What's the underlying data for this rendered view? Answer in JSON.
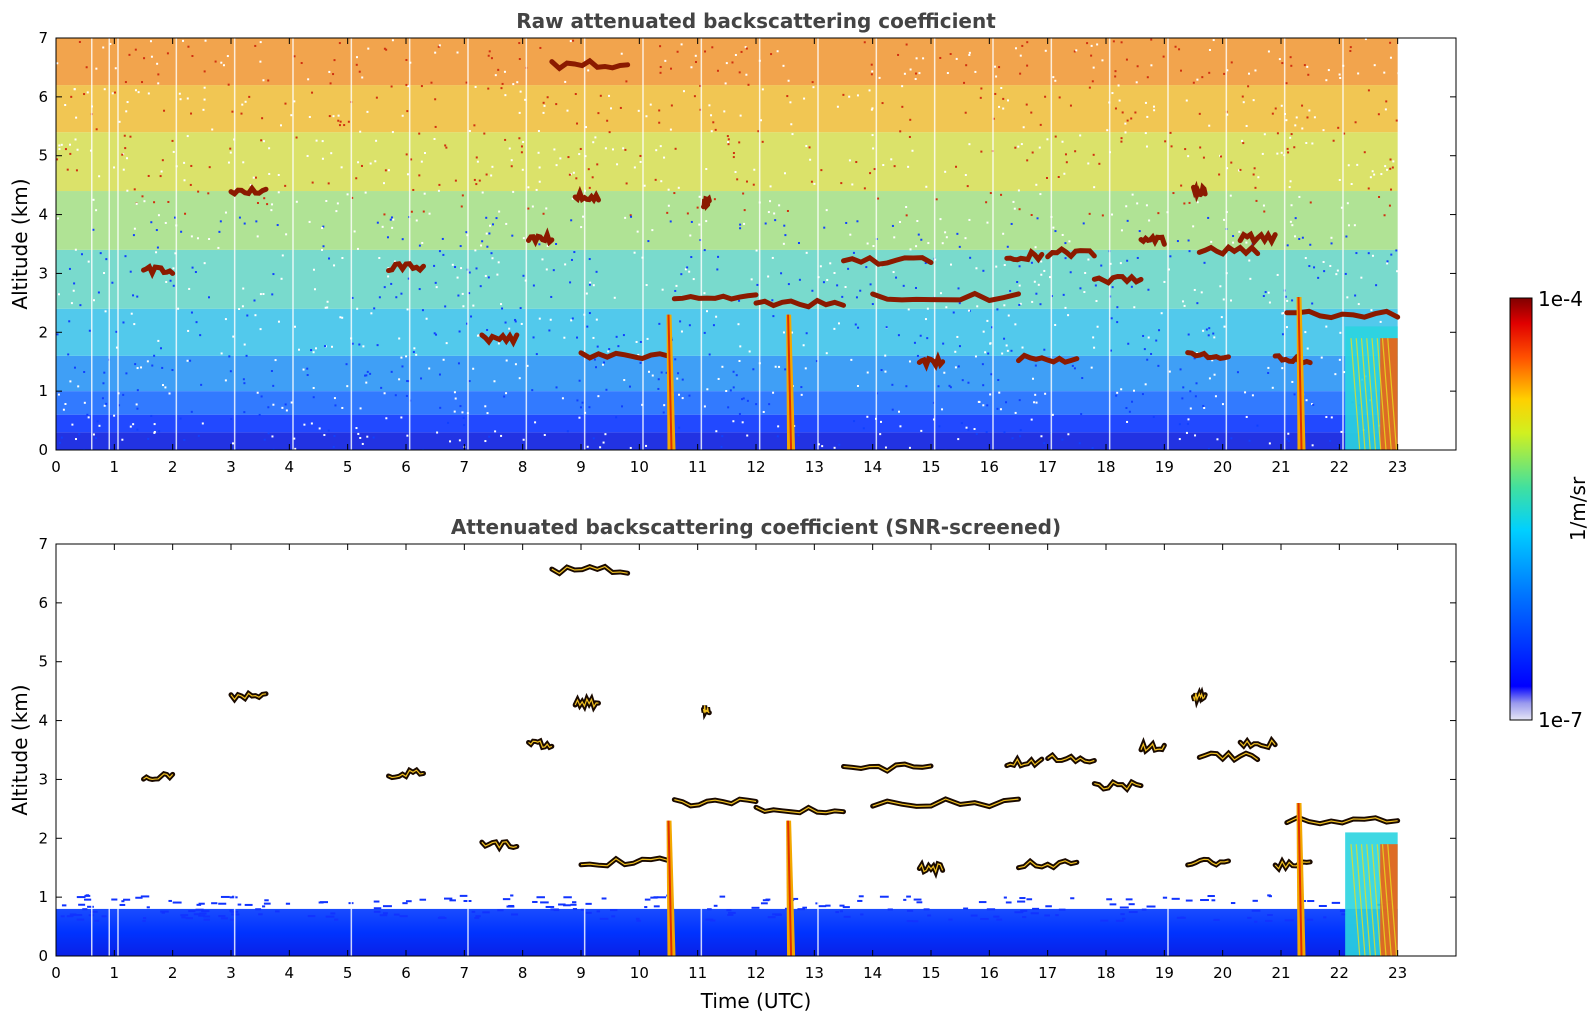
{
  "chart_data": [
    {
      "type": "heatmap",
      "title": "Raw attenuated backscattering coefficient",
      "xlabel": "",
      "ylabel": "Altitude (km)",
      "xlim": [
        0,
        24
      ],
      "ylim": [
        0,
        7
      ],
      "x_ticks": [
        "0",
        "1",
        "2",
        "3",
        "4",
        "5",
        "6",
        "7",
        "8",
        "9",
        "10",
        "11",
        "12",
        "13",
        "14",
        "15",
        "16",
        "17",
        "18",
        "19",
        "20",
        "21",
        "22",
        "23"
      ],
      "y_ticks": [
        "0",
        "1",
        "2",
        "3",
        "4",
        "5",
        "6",
        "7"
      ],
      "data_end_hour": 23,
      "boundary_layer_top_km": 0.6,
      "noise": "high",
      "features": [
        {
          "kind": "cloud",
          "t": [
            1.5,
            2.0
          ],
          "alt": 3.05
        },
        {
          "kind": "cloud",
          "t": [
            3.0,
            3.6
          ],
          "alt": 4.4
        },
        {
          "kind": "cloud",
          "t": [
            5.7,
            6.3
          ],
          "alt": 3.1
        },
        {
          "kind": "cloud",
          "t": [
            7.3,
            7.9
          ],
          "alt": 1.9
        },
        {
          "kind": "cloud",
          "t": [
            8.1,
            8.5
          ],
          "alt": 3.6
        },
        {
          "kind": "cloud",
          "t": [
            8.5,
            9.8
          ],
          "alt": 6.55
        },
        {
          "kind": "cloud",
          "t": [
            8.9,
            9.3
          ],
          "alt": 4.3
        },
        {
          "kind": "cloud",
          "t": [
            9.0,
            10.5
          ],
          "alt": 1.6
        },
        {
          "kind": "cloud",
          "t": [
            10.6,
            12.0
          ],
          "alt": 2.6
        },
        {
          "kind": "cloud",
          "t": [
            11.1,
            11.2
          ],
          "alt": 4.2
        },
        {
          "kind": "cloud",
          "t": [
            12.0,
            13.5
          ],
          "alt": 2.5
        },
        {
          "kind": "cloud",
          "t": [
            13.5,
            15.0
          ],
          "alt": 3.2
        },
        {
          "kind": "cloud",
          "t": [
            14.0,
            16.5
          ],
          "alt": 2.6
        },
        {
          "kind": "cloud",
          "t": [
            14.8,
            15.2
          ],
          "alt": 1.5
        },
        {
          "kind": "cloud",
          "t": [
            16.3,
            16.9
          ],
          "alt": 3.3
        },
        {
          "kind": "cloud",
          "t": [
            16.5,
            17.5
          ],
          "alt": 1.55
        },
        {
          "kind": "cloud",
          "t": [
            17.0,
            17.8
          ],
          "alt": 3.35
        },
        {
          "kind": "cloud",
          "t": [
            17.8,
            18.6
          ],
          "alt": 2.9
        },
        {
          "kind": "cloud",
          "t": [
            18.6,
            19.0
          ],
          "alt": 3.55
        },
        {
          "kind": "cloud",
          "t": [
            19.5,
            19.7
          ],
          "alt": 4.4
        },
        {
          "kind": "cloud",
          "t": [
            19.4,
            20.1
          ],
          "alt": 1.6
        },
        {
          "kind": "cloud",
          "t": [
            19.6,
            20.6
          ],
          "alt": 3.4
        },
        {
          "kind": "cloud",
          "t": [
            20.3,
            20.9
          ],
          "alt": 3.6
        },
        {
          "kind": "cloud",
          "t": [
            20.9,
            21.5
          ],
          "alt": 1.55
        },
        {
          "kind": "cloud",
          "t": [
            21.1,
            23.0
          ],
          "alt": 2.3
        },
        {
          "kind": "precip",
          "t": 10.5,
          "from_alt": 2.3
        },
        {
          "kind": "precip",
          "t": 12.55,
          "from_alt": 2.3
        },
        {
          "kind": "precip",
          "t": 21.3,
          "from_alt": 2.6
        },
        {
          "kind": "precip",
          "t": 22.5,
          "from_alt": 2.0
        }
      ]
    },
    {
      "type": "heatmap",
      "title": "Attenuated backscattering coefficient (SNR-screened)",
      "xlabel": "Time (UTC)",
      "ylabel": "Altitude (km)",
      "xlim": [
        0,
        24
      ],
      "ylim": [
        0,
        7
      ],
      "x_ticks": [
        "0",
        "1",
        "2",
        "3",
        "4",
        "5",
        "6",
        "7",
        "8",
        "9",
        "10",
        "11",
        "12",
        "13",
        "14",
        "15",
        "16",
        "17",
        "18",
        "19",
        "20",
        "21",
        "22",
        "23"
      ],
      "y_ticks": [
        "0",
        "1",
        "2",
        "3",
        "4",
        "5",
        "6",
        "7"
      ],
      "data_end_hour": 23,
      "boundary_layer_top_km": 0.6,
      "noise": "screened",
      "features": "same as raw panel"
    }
  ],
  "colorbar": {
    "label": "1/m/sr",
    "max_label": "1e-4",
    "min_label": "1e-7",
    "scale": "log",
    "colormap": "jet"
  }
}
